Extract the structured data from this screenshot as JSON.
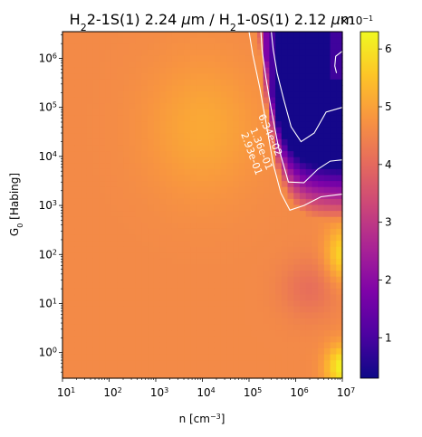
{
  "chart_data": {
    "type": "heatmap",
    "title_parts": {
      "a": "H",
      "a_sub": "2",
      "b": "2-1S(1) 2.24 ",
      "mu": "μ",
      "c": "m / H",
      "c_sub": "2",
      "d": "1-0S(1) 2.12 ",
      "mu2": "μ",
      "e": "m"
    },
    "xlabel_parts": {
      "a": "n [cm",
      "sup": "−3",
      "b": "]"
    },
    "ylabel_parts": {
      "a": "G",
      "sub": "0",
      "b": " [Habing]"
    },
    "x_scale": "log",
    "y_scale": "log",
    "xlim": [
      10,
      10000000
    ],
    "ylim": [
      0.3,
      3500000
    ],
    "x_ticks": [
      {
        "base": "10",
        "exp": "1",
        "value": 10
      },
      {
        "base": "10",
        "exp": "2",
        "value": 100
      },
      {
        "base": "10",
        "exp": "3",
        "value": 1000
      },
      {
        "base": "10",
        "exp": "4",
        "value": 10000
      },
      {
        "base": "10",
        "exp": "5",
        "value": 100000
      },
      {
        "base": "10",
        "exp": "6",
        "value": 1000000
      },
      {
        "base": "10",
        "exp": "7",
        "value": 10000000
      }
    ],
    "y_ticks": [
      {
        "base": "10",
        "exp": "0",
        "value": 1
      },
      {
        "base": "10",
        "exp": "1",
        "value": 10
      },
      {
        "base": "10",
        "exp": "2",
        "value": 100
      },
      {
        "base": "10",
        "exp": "3",
        "value": 1000
      },
      {
        "base": "10",
        "exp": "4",
        "value": 10000
      },
      {
        "base": "10",
        "exp": "5",
        "value": 100000
      },
      {
        "base": "10",
        "exp": "6",
        "value": 1000000
      }
    ],
    "colormap": "plasma",
    "colorbar": {
      "vmin": 0.03,
      "vmax": 0.63,
      "ticks": [
        "1",
        "2",
        "3",
        "4",
        "5",
        "6"
      ],
      "tick_values": [
        0.1,
        0.2,
        0.3,
        0.4,
        0.5,
        0.6
      ],
      "multiplier": {
        "base": "×10",
        "exp": "−1"
      }
    },
    "contours": [
      {
        "label": "6.34e-02",
        "level": 0.0634,
        "points": [
          [
            300000,
            3500000
          ],
          [
            330000,
            1500000
          ],
          [
            400000,
            500000
          ],
          [
            550000,
            150000
          ],
          [
            800000,
            40000
          ],
          [
            1300000,
            20000
          ],
          [
            2500000,
            30000
          ],
          [
            4500000,
            80000
          ],
          [
            10000000,
            100000
          ]
        ],
        "island": [
          [
            7500000,
            500000
          ],
          [
            6900000,
            700000
          ],
          [
            7200000,
            1100000
          ],
          [
            10000000,
            1400000
          ]
        ]
      },
      {
        "label": "1.36e-01",
        "level": 0.136,
        "points": [
          [
            180000,
            3500000
          ],
          [
            190000,
            1500000
          ],
          [
            230000,
            400000
          ],
          [
            300000,
            90000
          ],
          [
            430000,
            15000
          ],
          [
            700000,
            3000
          ],
          [
            1500000,
            2900
          ],
          [
            3000000,
            5500
          ],
          [
            5500000,
            8000
          ],
          [
            10000000,
            8500
          ]
        ]
      },
      {
        "label": "2.93e-01",
        "level": 0.293,
        "points": [
          [
            100000,
            3500000
          ],
          [
            120000,
            1200000
          ],
          [
            170000,
            250000
          ],
          [
            240000,
            40000
          ],
          [
            330000,
            7000
          ],
          [
            480000,
            1800
          ],
          [
            750000,
            800
          ],
          [
            1500000,
            1000
          ],
          [
            3500000,
            1500
          ],
          [
            10000000,
            1700
          ]
        ]
      }
    ],
    "grid_values_note": "",
    "grid": {
      "nx": 46,
      "ny": 58,
      "base_value": 0.46,
      "regions": [
        {
          "kind": "warm_blob",
          "x_log": 4.0,
          "y_log": 4.6,
          "sx": 1.2,
          "sy": 1.4,
          "amp": 0.05
        },
        {
          "kind": "dense_dark",
          "x_log_min": 5.4,
          "y_log_min": 3.3,
          "value_min": 0.04
        },
        {
          "kind": "hot_corner",
          "x_log": 7.0,
          "y_log": 2.0,
          "sx": 0.35,
          "sy": 0.55,
          "amp": 0.12
        },
        {
          "kind": "hot_corner",
          "x_log": 7.0,
          "y_log": -0.3,
          "sx": 0.35,
          "sy": 0.45,
          "amp": 0.16
        },
        {
          "kind": "cool_band",
          "x_log": 6.3,
          "y_log": 1.3,
          "sx": 0.6,
          "sy": 0.6,
          "amp": -0.05
        }
      ]
    }
  }
}
